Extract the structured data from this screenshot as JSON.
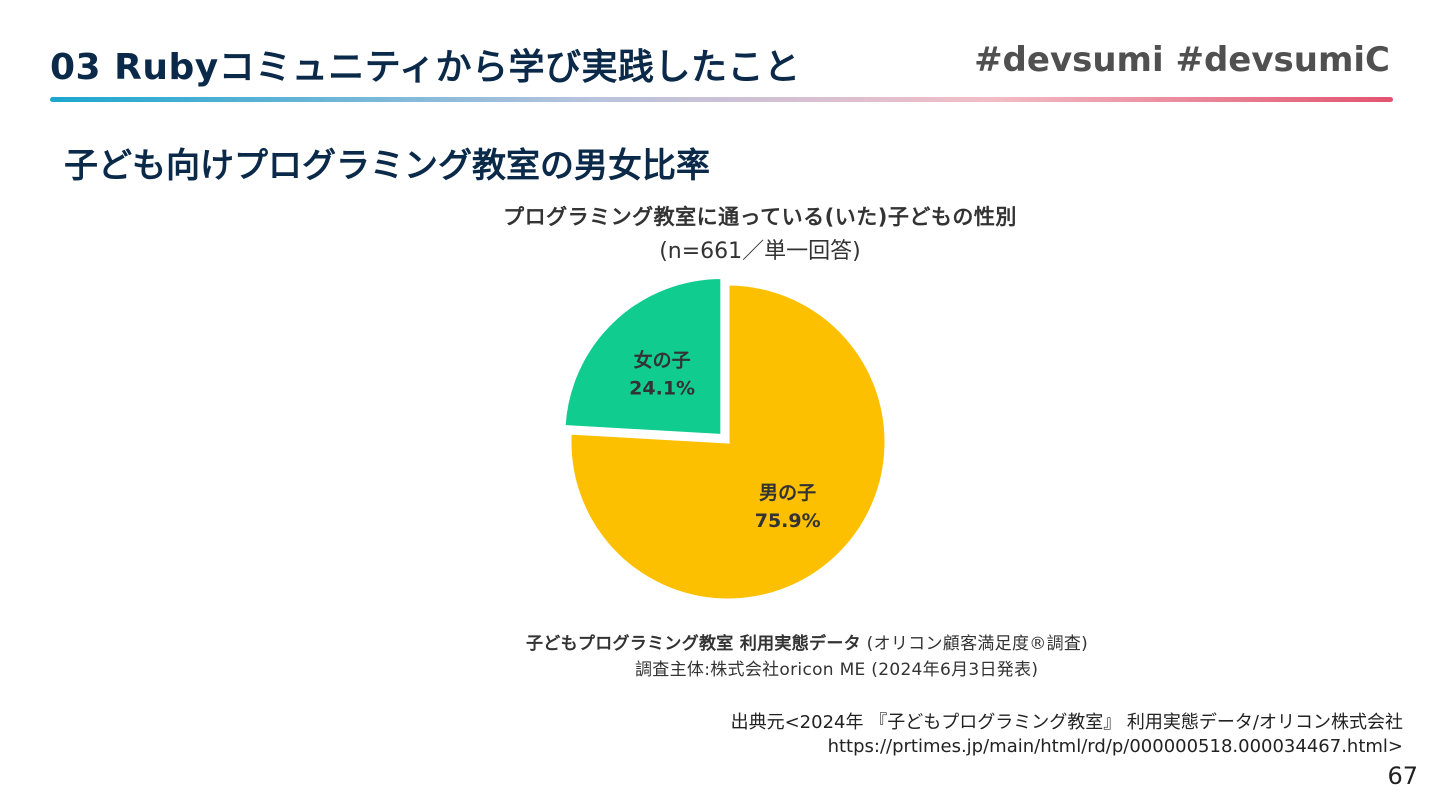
{
  "header": {
    "title": "03 Rubyコミュニティから学び実践したこと",
    "hashtags": "#devsumi #devsumiC"
  },
  "section": {
    "title": "子ども向けプログラミング教室の男女比率"
  },
  "chart_data": {
    "type": "pie",
    "title": "プログラミング教室に通っている(いた)子どもの性別",
    "subtitle": "(n=661／単一回答)",
    "categories": [
      "男の子",
      "女の子"
    ],
    "values": [
      75.9,
      24.1
    ],
    "value_labels": [
      "75.9%",
      "24.1%"
    ],
    "colors": [
      "#fcc000",
      "#10cc8e"
    ],
    "exploded": [
      "女の子"
    ],
    "legend": "none"
  },
  "survey": {
    "line1_bold": "子どもプログラミング教室 利用実態データ",
    "line1_rest": "(オリコン顧客満足度®調査)",
    "line2": "調査主体:株式会社oricon ME (2024年6月3日発表)"
  },
  "source": {
    "line1": "出典元<2024年 『子どもプログラミング教室』 利用実態データ/オリコン株式会社",
    "line2": "https://prtimes.jp/main/html/rd/p/000000518.000034467.html>"
  },
  "page_number": "67"
}
